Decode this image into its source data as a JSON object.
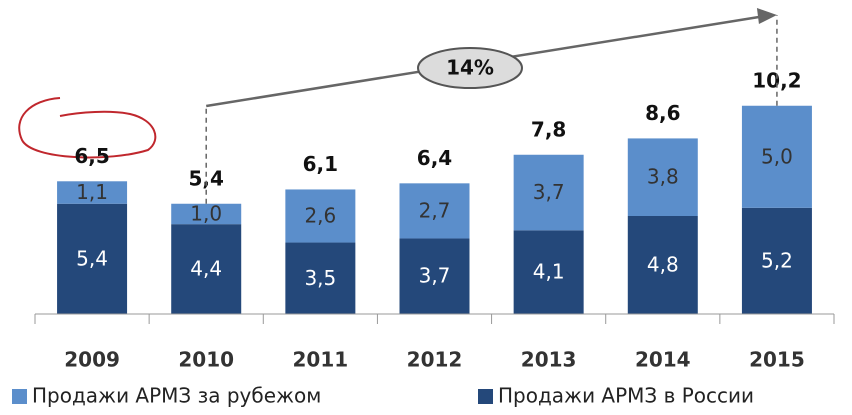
{
  "chart_data": {
    "type": "stacked-bar",
    "categories": [
      "2009",
      "2010",
      "2011",
      "2012",
      "2013",
      "2014",
      "2015"
    ],
    "series": [
      {
        "name": "Продажи АРМЗ в России",
        "color": "#24487a",
        "values": [
          5.4,
          4.4,
          3.5,
          3.7,
          4.1,
          4.8,
          5.2
        ],
        "value_labels": [
          "5,4",
          "4,4",
          "3,5",
          "3,7",
          "4,1",
          "4,8",
          "5,2"
        ]
      },
      {
        "name": "Продажи АРМЗ за рубежом",
        "color": "#5b8ecb",
        "values": [
          1.1,
          1.0,
          2.6,
          2.7,
          3.7,
          3.8,
          5.0
        ],
        "value_labels": [
          "1,1",
          "1,0",
          "2,6",
          "2,7",
          "3,7",
          "3,8",
          "5,0"
        ]
      }
    ],
    "totals": [
      6.5,
      5.4,
      6.1,
      6.4,
      7.8,
      8.6,
      10.2
    ],
    "totals_labels": [
      "6,5",
      "5,4",
      "6,1",
      "6,4",
      "7,8",
      "8,6",
      "10,2"
    ],
    "annotation": "14%",
    "ylim": [
      0,
      12
    ]
  }
}
